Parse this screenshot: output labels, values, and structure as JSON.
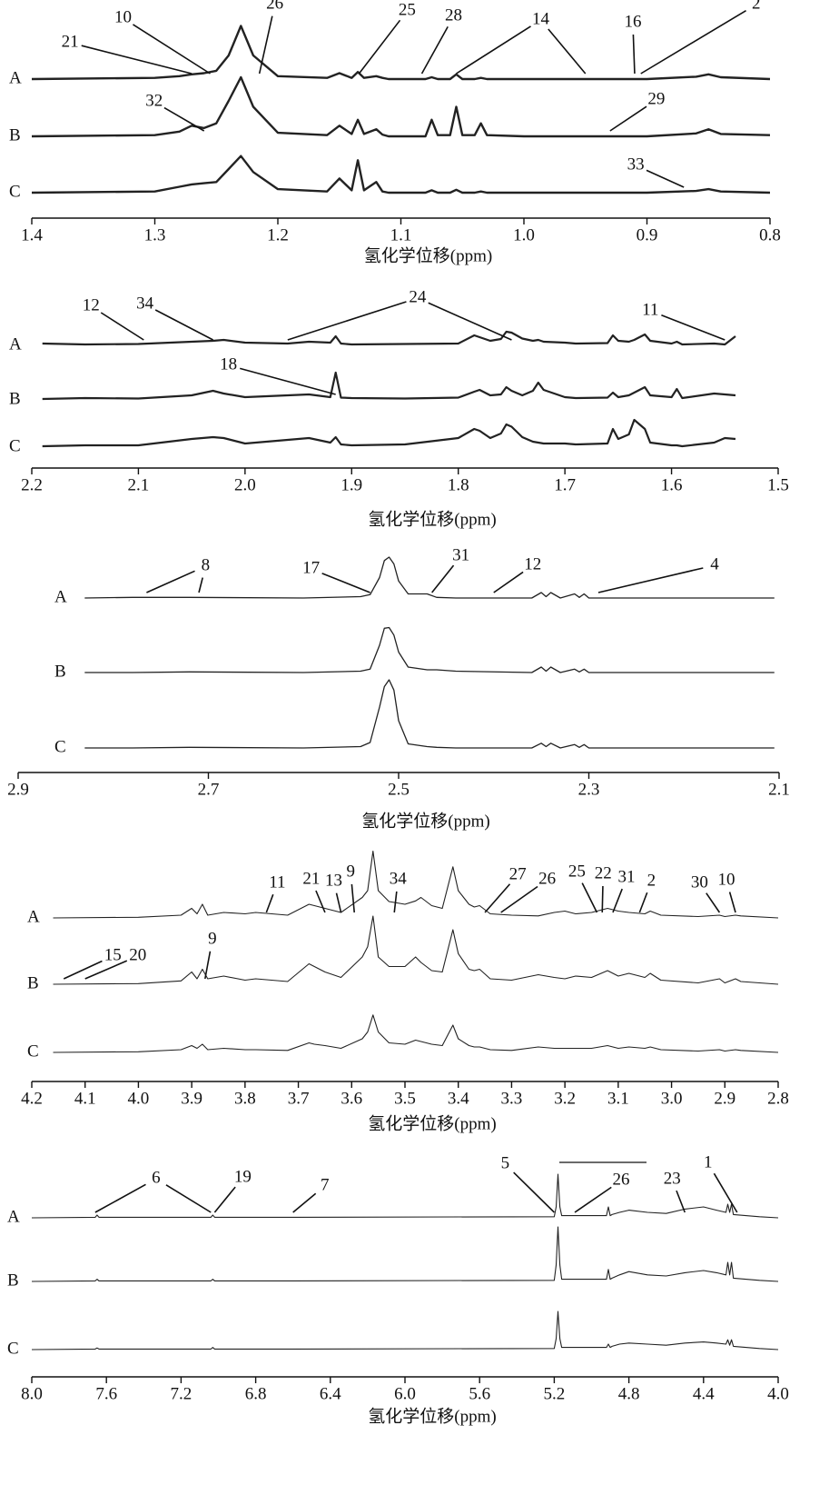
{
  "chart_data": [
    {
      "type": "line",
      "x_label": "氢化学位移(ppm)",
      "xlim": [
        1.4,
        0.8
      ],
      "xticks": [
        1.4,
        1.3,
        1.2,
        1.1,
        {
          "value": 1.0,
          "label": "1.0"
        },
        0.9,
        0.8
      ],
      "x": [
        1.4,
        1.3,
        1.28,
        1.27,
        1.26,
        1.25,
        1.24,
        1.23,
        1.22,
        1.2,
        1.16,
        1.15,
        1.14,
        1.135,
        1.13,
        1.12,
        1.115,
        1.11,
        1.08,
        1.075,
        1.07,
        1.06,
        1.055,
        1.05,
        1.04,
        1.035,
        1.03,
        1.0,
        0.9,
        0.86,
        0.85,
        0.84,
        0.8
      ],
      "series": [
        {
          "name": "A",
          "color": "#222222",
          "values": [
            0,
            2,
            5,
            8,
            10,
            14,
            40,
            90,
            40,
            5,
            2,
            10,
            2,
            12,
            2,
            5,
            2,
            0,
            0,
            3,
            0,
            0,
            8,
            0,
            0,
            2,
            0,
            0,
            0,
            4,
            8,
            3,
            0
          ]
        },
        {
          "name": "B",
          "color": "#222222",
          "values": [
            0,
            2,
            8,
            18,
            14,
            22,
            60,
            100,
            50,
            6,
            2,
            18,
            4,
            28,
            4,
            12,
            3,
            0,
            0,
            28,
            2,
            2,
            50,
            2,
            2,
            22,
            2,
            0,
            0,
            5,
            12,
            4,
            2
          ]
        },
        {
          "name": "C",
          "color": "#222222",
          "values": [
            0,
            2,
            10,
            14,
            16,
            18,
            40,
            62,
            35,
            6,
            2,
            24,
            4,
            55,
            4,
            18,
            2,
            0,
            0,
            4,
            0,
            0,
            5,
            0,
            0,
            2,
            0,
            0,
            0,
            3,
            6,
            2,
            0
          ]
        }
      ],
      "annotations": [
        {
          "text": "21",
          "x": 1.27,
          "trace": "A"
        },
        {
          "text": "10",
          "x": 1.255,
          "trace": "A"
        },
        {
          "text": "26",
          "x": 1.215,
          "trace": "A"
        },
        {
          "text": "25",
          "x": 1.134,
          "trace": "A"
        },
        {
          "text": "28",
          "x": 1.083,
          "trace": "A"
        },
        {
          "text": "14",
          "x": [
            1.055,
            0.95
          ],
          "trace": "A"
        },
        {
          "text": "16",
          "x": 0.91,
          "trace": "A"
        },
        {
          "text": "2",
          "x": 0.905,
          "trace": "A"
        },
        {
          "text": "32",
          "x": 1.26,
          "trace": "B"
        },
        {
          "text": "29",
          "x": 0.93,
          "trace": "B"
        },
        {
          "text": "33",
          "x": 0.87,
          "trace": "C"
        }
      ]
    },
    {
      "type": "line",
      "x_label": "氢化学位移(ppm)",
      "xlim": [
        2.2,
        1.5
      ],
      "xticks": [
        2.2,
        2.1,
        {
          "value": 2.0,
          "label": "2.0"
        },
        1.9,
        1.8,
        1.7,
        1.6,
        1.5
      ],
      "x": [
        2.19,
        2.15,
        2.1,
        2.05,
        2.03,
        2.02,
        2.0,
        1.96,
        1.94,
        1.92,
        1.915,
        1.91,
        1.9,
        1.85,
        1.8,
        1.785,
        1.78,
        1.77,
        1.76,
        1.755,
        1.75,
        1.74,
        1.73,
        1.725,
        1.72,
        1.7,
        1.69,
        1.66,
        1.655,
        1.65,
        1.64,
        1.635,
        1.625,
        1.62,
        1.6,
        1.595,
        1.59,
        1.56,
        1.55,
        1.54
      ],
      "series": [
        {
          "name": "A",
          "color": "#222222",
          "values": [
            4,
            2,
            3,
            8,
            10,
            12,
            6,
            4,
            8,
            6,
            20,
            4,
            2,
            3,
            4,
            22,
            18,
            10,
            14,
            30,
            28,
            15,
            10,
            12,
            8,
            6,
            4,
            5,
            22,
            10,
            8,
            12,
            24,
            10,
            4,
            8,
            2,
            4,
            2,
            20
          ]
        },
        {
          "name": "B",
          "color": "#222222",
          "values": [
            2,
            4,
            3,
            10,
            20,
            14,
            6,
            10,
            12,
            6,
            60,
            5,
            4,
            3,
            5,
            18,
            22,
            10,
            12,
            28,
            20,
            10,
            20,
            38,
            22,
            6,
            4,
            5,
            16,
            6,
            10,
            16,
            28,
            10,
            6,
            24,
            4,
            14,
            12,
            10
          ]
        },
        {
          "name": "C",
          "color": "#222222",
          "values": [
            2,
            4,
            4,
            18,
            22,
            20,
            8,
            16,
            20,
            10,
            22,
            6,
            4,
            6,
            20,
            40,
            36,
            20,
            30,
            50,
            45,
            22,
            12,
            10,
            8,
            8,
            6,
            8,
            40,
            18,
            28,
            60,
            40,
            10,
            4,
            4,
            2,
            10,
            20,
            18
          ]
        }
      ],
      "annotations": [
        {
          "text": "12",
          "x": 2.095,
          "trace": "A"
        },
        {
          "text": "34",
          "x": 2.03,
          "trace": "A"
        },
        {
          "text": "24",
          "x": [
            1.96,
            1.75
          ],
          "trace": "A"
        },
        {
          "text": "11",
          "x": 1.55,
          "trace": "A"
        },
        {
          "text": "18",
          "x": 1.915,
          "trace": "B"
        }
      ]
    },
    {
      "type": "line",
      "x_label": "氢化学位移(ppm)",
      "xlim": [
        2.9,
        2.1
      ],
      "xticks": [
        2.9,
        2.7,
        2.5,
        2.3,
        2.1
      ],
      "x": [
        2.83,
        2.78,
        2.72,
        2.6,
        2.54,
        2.53,
        2.52,
        2.515,
        2.51,
        2.505,
        2.5,
        2.49,
        2.47,
        2.46,
        2.44,
        2.36,
        2.35,
        2.345,
        2.34,
        2.33,
        2.315,
        2.31,
        2.305,
        2.3,
        2.29,
        2.2,
        2.105
      ],
      "series": [
        {
          "name": "A",
          "color": "#222222",
          "values": [
            0,
            1,
            1,
            0,
            2,
            5,
            30,
            55,
            60,
            50,
            25,
            6,
            6,
            1,
            0,
            0,
            8,
            2,
            8,
            0,
            6,
            1,
            6,
            0,
            0,
            0,
            0
          ]
        },
        {
          "name": "B",
          "color": "#222222",
          "values": [
            0,
            0,
            1,
            0,
            2,
            5,
            40,
            65,
            66,
            55,
            30,
            8,
            4,
            4,
            2,
            0,
            8,
            2,
            8,
            0,
            5,
            1,
            5,
            0,
            0,
            0,
            0
          ]
        },
        {
          "name": "C",
          "color": "#222222",
          "values": [
            0,
            0,
            1,
            0,
            2,
            8,
            60,
            90,
            100,
            85,
            40,
            6,
            2,
            1,
            0,
            0,
            7,
            2,
            7,
            0,
            5,
            1,
            5,
            0,
            0,
            0,
            0
          ]
        }
      ],
      "annotations": [
        {
          "text": "8",
          "x": [
            2.765,
            2.71
          ],
          "trace": "A"
        },
        {
          "text": "17",
          "x": 2.53,
          "trace": "A"
        },
        {
          "text": "31",
          "x": 2.465,
          "trace": "A"
        },
        {
          "text": "12",
          "x": 2.4,
          "trace": "A"
        },
        {
          "text": "4",
          "x": 2.29,
          "trace": "A"
        }
      ]
    },
    {
      "type": "line",
      "x_label": "氢化学位移(ppm)",
      "xlim": [
        4.2,
        2.8
      ],
      "xticks": [
        4.2,
        4.1,
        {
          "value": 4.0,
          "label": "4.0"
        },
        3.9,
        3.8,
        3.7,
        3.6,
        3.5,
        3.4,
        3.3,
        3.2,
        3.1,
        {
          "value": 3.0,
          "label": "3.0"
        },
        2.9,
        2.8
      ],
      "x": [
        4.16,
        4.0,
        3.92,
        3.9,
        3.89,
        3.88,
        3.87,
        3.84,
        3.8,
        3.78,
        3.72,
        3.68,
        3.67,
        3.65,
        3.62,
        3.58,
        3.57,
        3.56,
        3.55,
        3.53,
        3.5,
        3.48,
        3.47,
        3.45,
        3.43,
        3.41,
        3.4,
        3.38,
        3.37,
        3.36,
        3.34,
        3.3,
        3.25,
        3.22,
        3.2,
        3.18,
        3.15,
        3.12,
        3.1,
        3.08,
        3.05,
        3.04,
        3.02,
        2.95,
        2.91,
        2.9,
        2.88,
        2.87,
        2.8
      ],
      "series": [
        {
          "name": "A",
          "color": "#222222",
          "values": [
            0,
            1,
            4,
            14,
            6,
            20,
            4,
            8,
            6,
            8,
            4,
            20,
            18,
            14,
            8,
            30,
            40,
            98,
            40,
            24,
            20,
            25,
            30,
            18,
            14,
            75,
            40,
            20,
            16,
            18,
            6,
            4,
            3,
            8,
            10,
            6,
            8,
            14,
            10,
            8,
            6,
            10,
            4,
            2,
            4,
            2,
            4,
            3,
            0
          ]
        },
        {
          "name": "B",
          "color": "#222222",
          "values": [
            0,
            1,
            5,
            18,
            8,
            22,
            8,
            12,
            6,
            8,
            4,
            30,
            26,
            18,
            10,
            40,
            55,
            100,
            40,
            26,
            26,
            40,
            32,
            20,
            18,
            80,
            45,
            22,
            20,
            22,
            8,
            6,
            14,
            10,
            8,
            12,
            10,
            20,
            12,
            16,
            10,
            16,
            6,
            2,
            8,
            2,
            8,
            4,
            0
          ]
        },
        {
          "name": "C",
          "color": "#222222",
          "values": [
            0,
            1,
            4,
            10,
            6,
            12,
            4,
            6,
            4,
            4,
            3,
            14,
            12,
            10,
            6,
            20,
            30,
            55,
            30,
            14,
            12,
            18,
            16,
            12,
            10,
            40,
            20,
            10,
            8,
            8,
            4,
            3,
            8,
            6,
            6,
            6,
            6,
            10,
            6,
            8,
            6,
            8,
            4,
            2,
            4,
            2,
            4,
            3,
            0
          ]
        }
      ],
      "annotations": [
        {
          "text": "11",
          "x": 3.76,
          "trace": "A"
        },
        {
          "text": "21",
          "x": 3.65,
          "trace": "A"
        },
        {
          "text": "13",
          "x": 3.62,
          "trace": "A"
        },
        {
          "text": "9",
          "x": 3.595,
          "trace": "A"
        },
        {
          "text": "34",
          "x": 3.52,
          "trace": "A"
        },
        {
          "text": "27",
          "x": 3.35,
          "trace": "A"
        },
        {
          "text": "26",
          "x": 3.32,
          "trace": "A"
        },
        {
          "text": "25",
          "x": 3.14,
          "trace": "A"
        },
        {
          "text": "22",
          "x": 3.13,
          "trace": "A"
        },
        {
          "text": "31",
          "x": 3.11,
          "trace": "A"
        },
        {
          "text": "2",
          "x": 3.06,
          "trace": "A"
        },
        {
          "text": "30",
          "x": 2.91,
          "trace": "A"
        },
        {
          "text": "10",
          "x": 2.88,
          "trace": "A"
        },
        {
          "text": "15",
          "x": 4.14,
          "trace": "B"
        },
        {
          "text": "20",
          "x": 4.1,
          "trace": "B"
        },
        {
          "text": "9",
          "x": 3.875,
          "trace": "B"
        }
      ]
    },
    {
      "type": "line",
      "x_label": "氢化学位移(ppm)",
      "xlim": [
        8.0,
        4.0
      ],
      "xticks": [
        {
          "value": 8.0,
          "label": "8.0"
        },
        7.6,
        7.2,
        6.8,
        6.4,
        {
          "value": 6.0,
          "label": "6.0"
        },
        5.6,
        5.2,
        4.8,
        4.4,
        {
          "value": 4.0,
          "label": "4.0"
        }
      ],
      "x": [
        8.0,
        7.66,
        7.65,
        7.64,
        7.04,
        7.03,
        7.02,
        6.6,
        5.2,
        5.19,
        5.18,
        5.17,
        5.16,
        4.92,
        4.91,
        4.9,
        4.89,
        4.85,
        4.8,
        4.7,
        4.6,
        4.5,
        4.4,
        4.33,
        4.28,
        4.27,
        4.26,
        4.25,
        4.24,
        4.1,
        4.0
      ],
      "series": [
        {
          "name": "A",
          "color": "#222222",
          "values": [
            0,
            1,
            5,
            1,
            1,
            5,
            1,
            1,
            2,
            20,
            80,
            20,
            4,
            4,
            20,
            4,
            6,
            10,
            14,
            10,
            8,
            16,
            20,
            14,
            10,
            25,
            10,
            25,
            6,
            2,
            0
          ]
        },
        {
          "name": "B",
          "color": "#222222",
          "values": [
            0,
            1,
            4,
            1,
            1,
            4,
            1,
            1,
            2,
            30,
            100,
            30,
            4,
            4,
            22,
            4,
            6,
            12,
            18,
            12,
            10,
            16,
            20,
            16,
            12,
            35,
            12,
            35,
            6,
            2,
            0
          ]
        },
        {
          "name": "C",
          "color": "#222222",
          "values": [
            0,
            1,
            3,
            1,
            1,
            4,
            1,
            1,
            2,
            20,
            70,
            20,
            4,
            4,
            10,
            4,
            6,
            10,
            12,
            10,
            8,
            12,
            14,
            12,
            10,
            18,
            8,
            18,
            6,
            2,
            0
          ]
        }
      ],
      "annotations": [
        {
          "text": "6",
          "x": [
            7.66,
            7.04
          ],
          "trace": "A"
        },
        {
          "text": "19",
          "x": 7.02,
          "trace": "A"
        },
        {
          "text": "7",
          "x": 6.6,
          "trace": "A"
        },
        {
          "text": "5",
          "x": 5.2,
          "trace": "A"
        },
        {
          "text": "26",
          "x": 5.09,
          "trace": "A"
        },
        {
          "text": "23",
          "x": 4.5,
          "trace": "A"
        },
        {
          "text": "1",
          "x": 4.22,
          "trace": "A"
        }
      ]
    }
  ]
}
